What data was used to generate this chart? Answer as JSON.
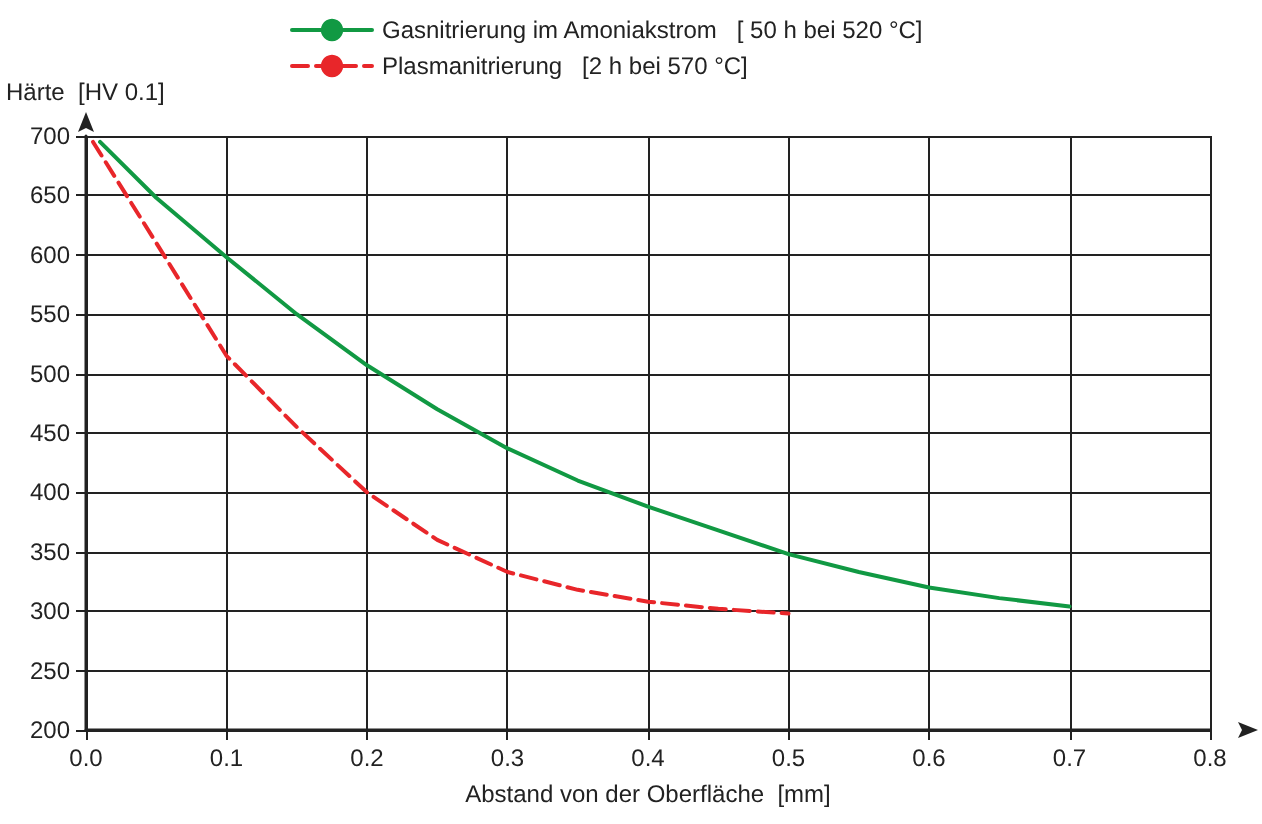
{
  "chart_data": {
    "type": "line",
    "xlabel": "Abstand von der Oberfläche  [mm]",
    "ylabel": "Härte  [HV 0.1]",
    "xlim": [
      0,
      0.8
    ],
    "xticks": [
      {
        "value": 0,
        "label": "0.0"
      },
      0.1,
      0.2,
      0.3,
      0.4,
      0.5,
      0.6,
      0.7,
      0.8
    ],
    "ylim": [
      200,
      700
    ],
    "yticks": [
      200,
      250,
      300,
      350,
      400,
      450,
      500,
      550,
      600,
      650,
      700
    ],
    "grid": true,
    "legend": "top",
    "marker": "none",
    "series": [
      {
        "name": "Gasnitrierung im Amoniakstrom   [ 50 h bei 520 °C]",
        "color": "#119943",
        "line_style": "solid",
        "x": [
          0.01,
          0.05,
          0.1,
          0.15,
          0.2,
          0.25,
          0.3,
          0.35,
          0.4,
          0.45,
          0.5,
          0.55,
          0.6,
          0.65,
          0.7
        ],
        "values": [
          695,
          648,
          598,
          550,
          507,
          470,
          437,
          410,
          388,
          368,
          348,
          333,
          320,
          311,
          304
        ]
      },
      {
        "name": "Plasmanitrierung   [2 h bei 570 °C]",
        "color": "#e8262a",
        "line_style": "dashed",
        "x": [
          0.005,
          0.05,
          0.1,
          0.15,
          0.2,
          0.25,
          0.3,
          0.35,
          0.4,
          0.45,
          0.5
        ],
        "values": [
          695,
          610,
          515,
          455,
          400,
          360,
          333,
          318,
          308,
          302,
          298
        ]
      }
    ]
  }
}
